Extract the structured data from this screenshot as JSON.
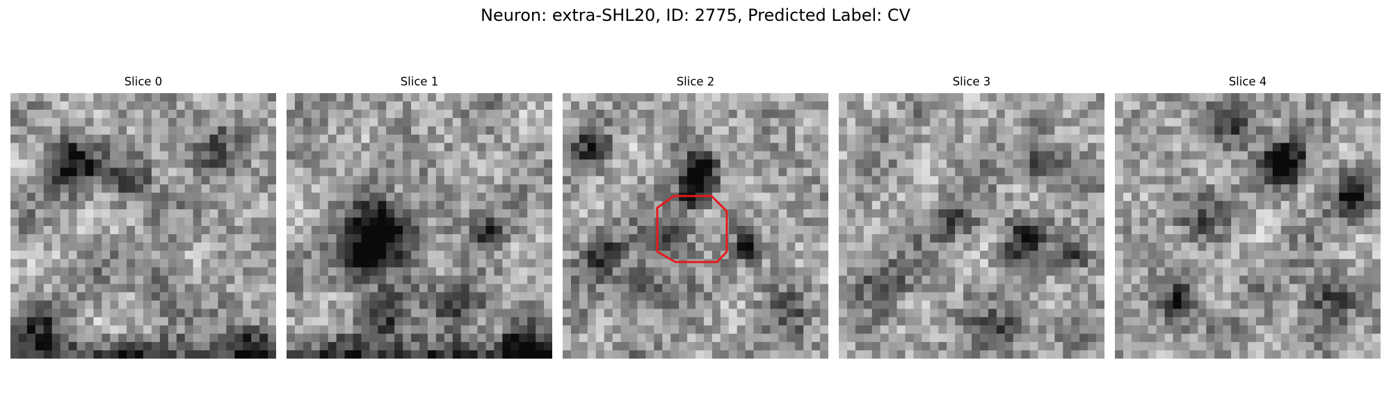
{
  "figure": {
    "title": "Neuron: extra-SHL20, ID: 2775, Predicted Label: CV"
  },
  "panels": [
    {
      "title": "Slice 0",
      "seed": 11,
      "highlight": false
    },
    {
      "title": "Slice 1",
      "seed": 23,
      "highlight": false
    },
    {
      "title": "Slice 2",
      "seed": 37,
      "highlight": true
    },
    {
      "title": "Slice 3",
      "seed": 51,
      "highlight": false
    },
    {
      "title": "Slice 4",
      "seed": 67,
      "highlight": false
    }
  ],
  "colors": {
    "highlight_outline": "#e41a1c"
  },
  "image_grid": {
    "cells": 32
  }
}
